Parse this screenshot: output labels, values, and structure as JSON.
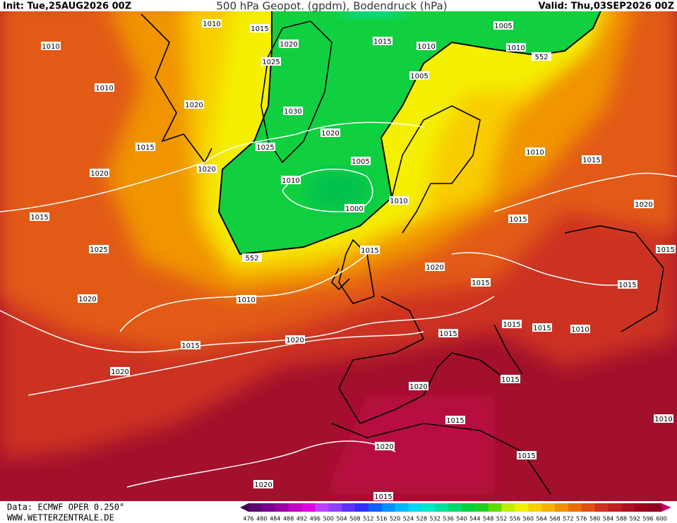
{
  "header": {
    "init": "Init: Tue,25AUG2026 00Z",
    "title": "500 hPa Geopot. (gpdm), Bodendruck (hPa)",
    "valid": "Valid: Thu,03SEP2026 00Z"
  },
  "map": {
    "contour_labels": [
      1010,
      1010,
      1015,
      1020,
      1025,
      1015,
      1010,
      1005,
      1010,
      552,
      1010,
      1020,
      1030,
      1005,
      1020,
      1015,
      1025,
      1010,
      1015,
      1020,
      1020,
      1010,
      1005,
      1010,
      1000,
      1015,
      1015,
      1020,
      1025,
      552,
      1015,
      1015,
      1020,
      1015,
      1015,
      1010,
      1020,
      1015,
      1015,
      1010,
      1015,
      1020,
      1015,
      1020,
      1020,
      1015,
      1015,
      1010,
      1020,
      1015,
      1020,
      1015
    ]
  },
  "legend": {
    "labels": [
      476,
      480,
      484,
      488,
      492,
      496,
      500,
      504,
      508,
      512,
      516,
      520,
      524,
      528,
      532,
      536,
      540,
      544,
      548,
      552,
      556,
      560,
      564,
      568,
      572,
      576,
      580,
      584,
      588,
      592,
      596,
      600
    ],
    "colors": [
      "#3c0050",
      "#5a0a6e",
      "#7a0090",
      "#9a00a8",
      "#c000c0",
      "#e000e0",
      "#c040ff",
      "#9040ff",
      "#6030ff",
      "#3030ff",
      "#1060ff",
      "#0090ff",
      "#00b8ff",
      "#00d8f0",
      "#00e8c8",
      "#00e098",
      "#00d870",
      "#00d040",
      "#20d020",
      "#60dc00",
      "#c0ec00",
      "#f0f000",
      "#f8d000",
      "#f8b000",
      "#f09000",
      "#e87000",
      "#e05010",
      "#d03020",
      "#c02020",
      "#b01020",
      "#a00020",
      "#900020",
      "#c00070"
    ]
  },
  "footer": {
    "source": "Data: ECMWF OPER 0.250°",
    "site": "WWW.WETTERZENTRALE.DE"
  }
}
